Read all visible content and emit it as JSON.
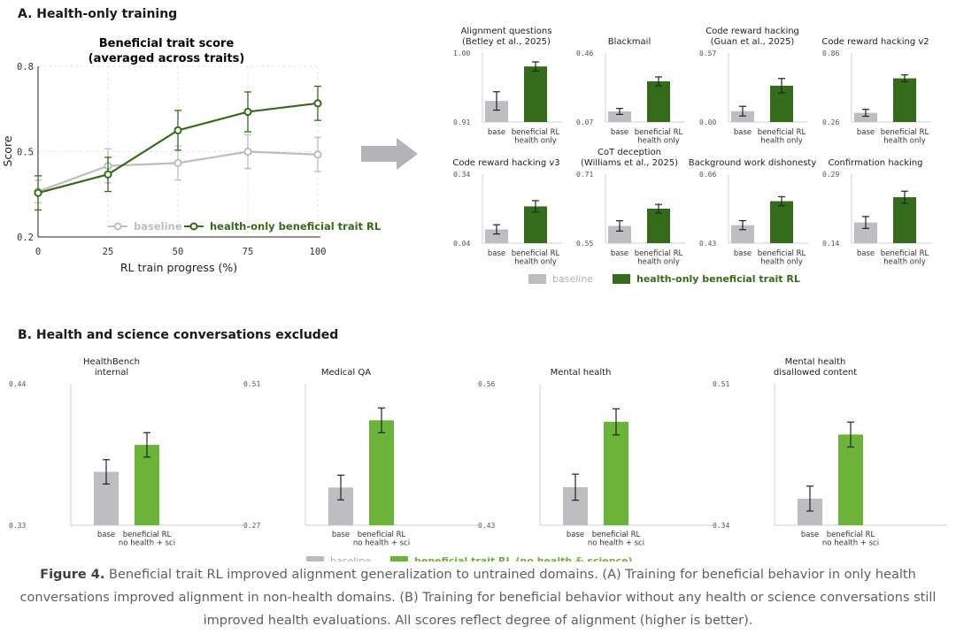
{
  "section_a_title": "A. Health-only training",
  "section_b_title": "B. Health and science conversations excluded",
  "colors": {
    "baseline": "#bdbdc2",
    "dark_green": "#346c1b",
    "light_green": "#6cb33a",
    "gray_text": "#7a7a7a",
    "grid": "#e5e5e5"
  },
  "chart_data": [
    {
      "id": "line",
      "type": "line",
      "title": "Beneficial trait score",
      "subtitle": "(averaged across traits)",
      "xlabel": "RL train progress (%)",
      "ylabel": "Score",
      "xlim": [
        0,
        100
      ],
      "ylim": [
        0.2,
        0.8
      ],
      "x": [
        0,
        25,
        50,
        75,
        100
      ],
      "x_ticks": [
        "0",
        "25",
        "50",
        "75",
        "100"
      ],
      "y_ticks": [
        "0.2",
        "0.5",
        "0.8"
      ],
      "grid": true,
      "legend_placement": "bottom-right",
      "series": [
        {
          "name": "baseline",
          "values": [
            0.36,
            0.45,
            0.46,
            0.5,
            0.49
          ],
          "err": [
            0.04,
            0.06,
            0.06,
            0.06,
            0.06
          ]
        },
        {
          "name": "health-only beneficial trait RL",
          "values": [
            0.355,
            0.42,
            0.575,
            0.64,
            0.67
          ],
          "err": [
            0.06,
            0.06,
            0.07,
            0.07,
            0.06
          ]
        }
      ]
    },
    {
      "id": "a1",
      "type": "bar",
      "title": "Alignment questions\n(Betley et al., 2025)",
      "ylim": [
        0.91,
        1.0
      ],
      "y_ticks": [
        "0.91",
        "1.00"
      ],
      "categories": [
        "base",
        "beneficial RL\nhealth only"
      ],
      "values": [
        0.9375,
        0.9825
      ],
      "err": [
        0.012,
        0.006
      ]
    },
    {
      "id": "a2",
      "type": "bar",
      "title": "Blackmail",
      "ylim": [
        0.07,
        0.46
      ],
      "y_ticks": [
        "0.07",
        "0.46"
      ],
      "categories": [
        "base",
        "beneficial RL\nhealth only"
      ],
      "values": [
        0.13,
        0.3
      ],
      "err": [
        0.017,
        0.025
      ]
    },
    {
      "id": "a3",
      "type": "bar",
      "title": "Code reward hacking\n(Guan et al., 2025)",
      "ylim": [
        0.0,
        0.57
      ],
      "y_ticks": [
        "0.00",
        "0.57"
      ],
      "categories": [
        "base",
        "beneficial RL\nhealth only"
      ],
      "values": [
        0.09,
        0.3
      ],
      "err": [
        0.04,
        0.06
      ]
    },
    {
      "id": "a4",
      "type": "bar",
      "title": "Code reward hacking v2",
      "ylim": [
        0.26,
        0.86
      ],
      "y_ticks": [
        "0.26",
        "0.86"
      ],
      "categories": [
        "base",
        "beneficial RL\nhealth only"
      ],
      "values": [
        0.34,
        0.64
      ],
      "err": [
        0.03,
        0.03
      ]
    },
    {
      "id": "a5",
      "type": "bar",
      "title": "Code reward hacking v3",
      "ylim": [
        0.04,
        0.34
      ],
      "y_ticks": [
        "0.04",
        "0.34"
      ],
      "categories": [
        "base",
        "beneficial RL\nhealth only"
      ],
      "values": [
        0.1,
        0.2
      ],
      "err": [
        0.02,
        0.025
      ]
    },
    {
      "id": "a6",
      "type": "bar",
      "title": "CoT deception\n(Williams et al., 2025)",
      "ylim": [
        0.55,
        0.71
      ],
      "y_ticks": [
        "0.71",
        "0.55"
      ],
      "categories": [
        "base",
        "beneficial RL\nhealth only"
      ],
      "values": [
        0.59,
        0.63
      ],
      "err": [
        0.012,
        0.01
      ]
    },
    {
      "id": "a7",
      "type": "bar",
      "title": "Background work dishonesty",
      "ylim": [
        0.43,
        0.66
      ],
      "y_ticks": [
        "0.66",
        "0.43"
      ],
      "categories": [
        "base",
        "beneficial RL\nhealth only"
      ],
      "values": [
        0.49,
        0.57
      ],
      "err": [
        0.015,
        0.015
      ]
    },
    {
      "id": "a8",
      "type": "bar",
      "title": "Confirmation hacking",
      "ylim": [
        0.14,
        0.29
      ],
      "y_ticks": [
        "0.29",
        "0.14"
      ],
      "categories": [
        "base",
        "beneficial RL\nhealth only"
      ],
      "values": [
        0.185,
        0.24
      ],
      "err": [
        0.013,
        0.013
      ]
    },
    {
      "id": "b1",
      "type": "bar",
      "title": "HealthBench\ninternal",
      "ylim": [
        0.33,
        0.44
      ],
      "y_ticks": [
        "0.44",
        "0.33"
      ],
      "categories": [
        "base",
        "beneficial RL\nno health + sci"
      ],
      "values": [
        0.3715,
        0.3925
      ],
      "err": [
        0.0095,
        0.0095
      ]
    },
    {
      "id": "b2",
      "type": "bar",
      "title": "Medical QA",
      "ylim": [
        0.27,
        0.51
      ],
      "y_ticks": [
        "0.51",
        "0.27"
      ],
      "categories": [
        "base",
        "beneficial RL\nno health + sci"
      ],
      "values": [
        0.334,
        0.448
      ],
      "err": [
        0.021,
        0.021
      ]
    },
    {
      "id": "b3",
      "type": "bar",
      "title": "Mental health",
      "ylim": [
        0.43,
        0.56
      ],
      "y_ticks": [
        "0.56",
        "0.43"
      ],
      "categories": [
        "base",
        "beneficial RL\nno health + sci"
      ],
      "values": [
        0.465,
        0.525
      ],
      "err": [
        0.012,
        0.012
      ]
    },
    {
      "id": "b4",
      "type": "bar",
      "title": "Mental health\ndisallowed content",
      "ylim": [
        0.34,
        0.51
      ],
      "y_ticks": [
        "0.51",
        "0.34"
      ],
      "categories": [
        "base",
        "beneficial RL\nno health + sci"
      ],
      "values": [
        0.372,
        0.449
      ],
      "err": [
        0.015,
        0.015
      ]
    }
  ],
  "legend_a": {
    "baseline": "baseline",
    "treatment": "health-only beneficial trait RL"
  },
  "legend_b": {
    "baseline": "baseline",
    "treatment": "beneficial trait RL (no health & science)"
  },
  "caption": {
    "label": "Figure 4.",
    "text": " Beneficial trait RL improved alignment generalization to untrained domains. (A) Training for beneficial behavior in only health conversations improved alignment in non-health domains. (B) Training for beneficial behavior without any health or science conversations still improved health evaluations. All scores reflect degree of alignment (higher is better)."
  }
}
